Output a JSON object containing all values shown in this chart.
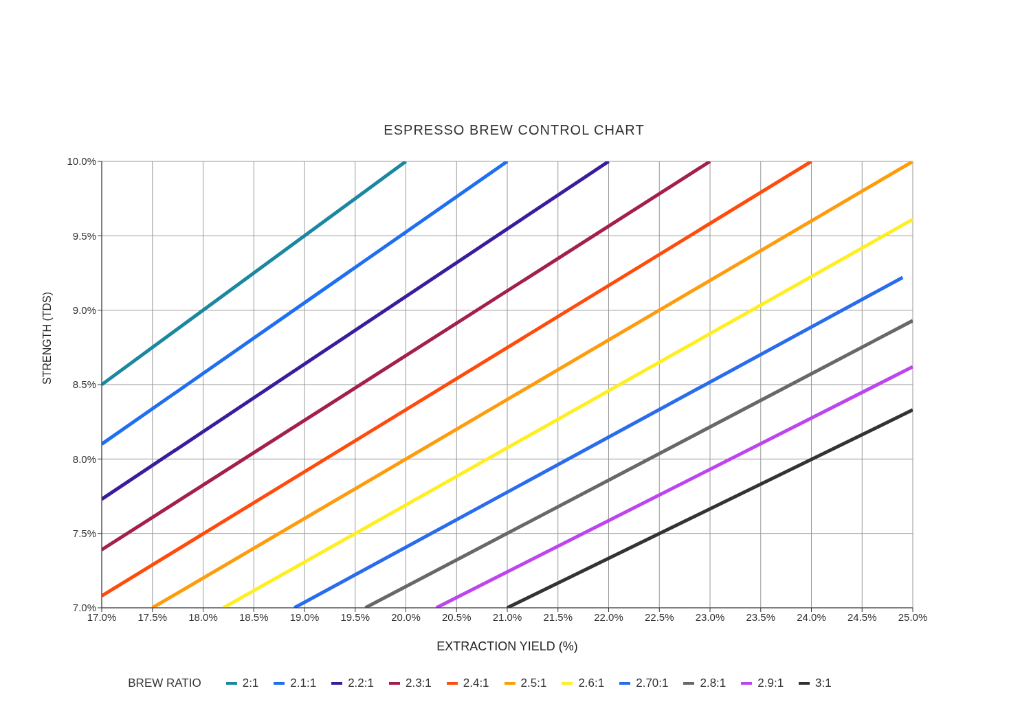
{
  "chart_data": {
    "type": "line",
    "title": "ESPRESSO BREW CONTROL CHART",
    "xlabel": "EXTRACTION YIELD (%)",
    "ylabel": "STRENGTH (TDS)",
    "legend_title": "BREW RATIO",
    "legend": "bottom",
    "grid": true,
    "marker": "none",
    "line_style": "solid",
    "xlim": [
      17,
      25
    ],
    "ylim": [
      7,
      10
    ],
    "xticks": [
      {
        "value": 17,
        "label": "17.0%"
      },
      {
        "value": 17.5,
        "label": "17.5%"
      },
      {
        "value": 18,
        "label": "18.0%"
      },
      {
        "value": 18.5,
        "label": "18.5%"
      },
      {
        "value": 19,
        "label": "19.0%"
      },
      {
        "value": 19.5,
        "label": "19.5%"
      },
      {
        "value": 20,
        "label": "20.0%"
      },
      {
        "value": 20.5,
        "label": "20.5%"
      },
      {
        "value": 21,
        "label": "21.0%"
      },
      {
        "value": 21.5,
        "label": "21.5%"
      },
      {
        "value": 22,
        "label": "22.0%"
      },
      {
        "value": 22.5,
        "label": "22.5%"
      },
      {
        "value": 23,
        "label": "23.0%"
      },
      {
        "value": 23.5,
        "label": "23.5%"
      },
      {
        "value": 24,
        "label": "24.0%"
      },
      {
        "value": 24.5,
        "label": "24.5%"
      },
      {
        "value": 25,
        "label": "25.0%"
      }
    ],
    "yticks": [
      {
        "value": 7,
        "label": "7.0%"
      },
      {
        "value": 7.5,
        "label": "7.5%"
      },
      {
        "value": 8,
        "label": "8.0%"
      },
      {
        "value": 8.5,
        "label": "8.5%"
      },
      {
        "value": 9,
        "label": "9.0%"
      },
      {
        "value": 9.5,
        "label": "9.5%"
      },
      {
        "value": 10,
        "label": "10.0%"
      }
    ],
    "series": [
      {
        "name": "2:1",
        "color": "#1b87a0",
        "x": [
          17,
          20
        ],
        "values": [
          8.5,
          10
        ]
      },
      {
        "name": "2.1:1",
        "color": "#1f6ff0",
        "x": [
          17,
          21
        ],
        "values": [
          8.1,
          10
        ]
      },
      {
        "name": "2.2:1",
        "color": "#3b1c9c",
        "x": [
          17,
          22
        ],
        "values": [
          7.73,
          10
        ]
      },
      {
        "name": "2.3:1",
        "color": "#a3204c",
        "x": [
          17,
          23
        ],
        "values": [
          7.39,
          10
        ]
      },
      {
        "name": "2.4:1",
        "color": "#ff4c0c",
        "x": [
          17,
          24
        ],
        "values": [
          7.08,
          10
        ]
      },
      {
        "name": "2.5:1",
        "color": "#ff9c0c",
        "x": [
          17.5,
          25
        ],
        "values": [
          7,
          10
        ]
      },
      {
        "name": "2.6:1",
        "color": "#ffee22",
        "x": [
          18.2,
          25
        ],
        "values": [
          7,
          9.61
        ]
      },
      {
        "name": "2.70:1",
        "color": "#2a6cee",
        "x": [
          18.9,
          24.9
        ],
        "values": [
          7,
          9.22
        ]
      },
      {
        "name": "2.8:1",
        "color": "#686868",
        "x": [
          19.6,
          25
        ],
        "values": [
          7,
          8.93
        ]
      },
      {
        "name": "2.9:1",
        "color": "#bd45ef",
        "x": [
          20.3,
          25
        ],
        "values": [
          7,
          8.62
        ]
      },
      {
        "name": "3:1",
        "color": "#333333",
        "x": [
          21,
          25
        ],
        "values": [
          7,
          8.33
        ]
      }
    ]
  }
}
